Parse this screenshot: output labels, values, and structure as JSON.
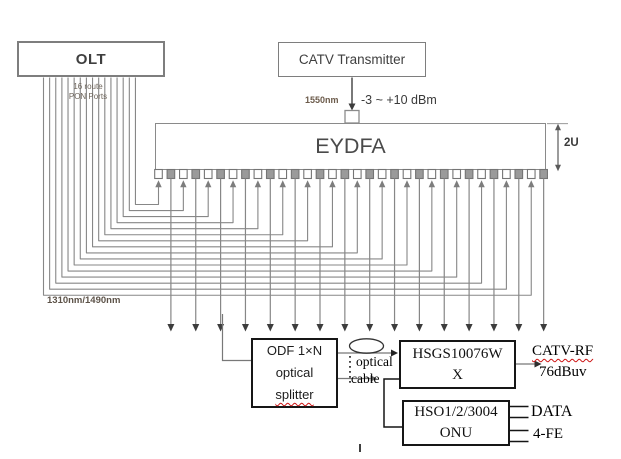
{
  "diagram": {
    "olt": {
      "label": "OLT",
      "ports_note_line1": "16 route",
      "ports_note_line2": "PON Ports",
      "pon_port_count": 16,
      "downstream_wavelengths": "1310nm/1490nm"
    },
    "catv": {
      "label": "CATV Transmitter",
      "wavelength": "1550nm",
      "power_range": "-3 ~ +10 dBm"
    },
    "eydfa": {
      "label": "EYDFA",
      "height_label": "2U",
      "output_count": 16
    },
    "splitter": {
      "line1": "ODF 1×N",
      "line2": "optical",
      "line3": "splitter"
    },
    "cable_note": {
      "line1": "optical",
      "line2": "cable"
    },
    "hsgs": {
      "line1": "HSGS10076W",
      "line2": "X",
      "rf_output_label": "CATV-RF",
      "rf_output_level": "76dBuv"
    },
    "onu": {
      "line1": "HSO1/2/3004",
      "line2": "ONU",
      "port_label_1": "DATA",
      "port_label_2": "4-FE"
    }
  },
  "colors": {
    "wire_gray": "#878787",
    "dark_line": "#4c4c4c",
    "black_line": "#151515",
    "arrow_dark": "#3c3c3c",
    "arrow_gray": "#7d7d7d",
    "port_fill_gray": "#9a9a9a",
    "port_stroke": "#757575",
    "squiggle_red": "#cc1111"
  }
}
